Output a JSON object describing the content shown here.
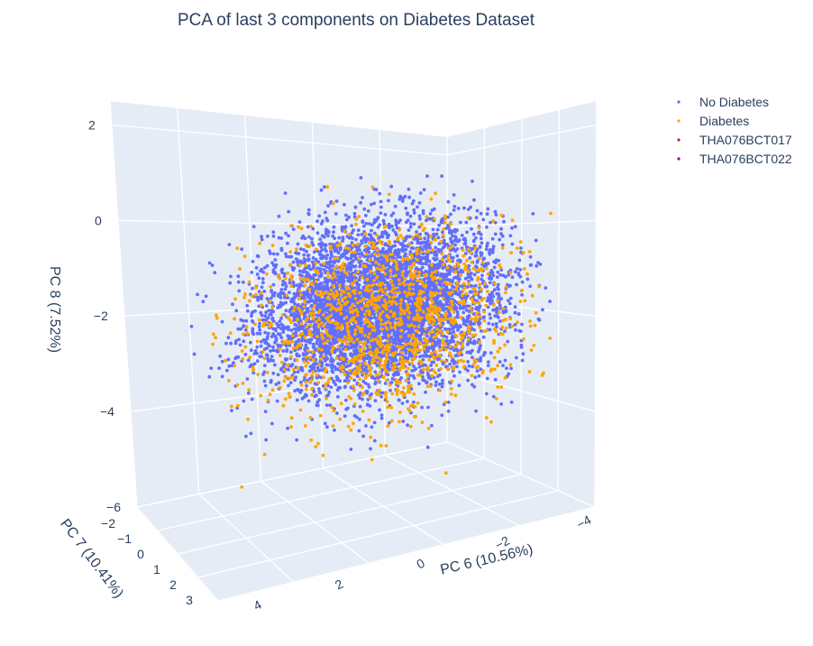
{
  "chart_data": {
    "type": "scatter",
    "dimension": "3d",
    "title": "PCA of last 3 components on Diabetes Dataset",
    "axes": {
      "x": {
        "label": "PC 6 (10.56%)",
        "range": [
          -4,
          4
        ],
        "ticks": [
          "−4",
          "−2",
          "0",
          "2",
          "4"
        ]
      },
      "y": {
        "label": "PC 7 (10.41%)",
        "range": [
          -2,
          3
        ],
        "ticks": [
          "−2",
          "−1",
          "0",
          "1",
          "2",
          "3"
        ]
      },
      "z": {
        "label": "PC 8 (7.52%)",
        "range": [
          -6,
          2.5
        ],
        "ticks": [
          "−6",
          "−4",
          "−2",
          "0",
          "2"
        ]
      }
    },
    "grid": true,
    "legend_position": "top-right",
    "series": [
      {
        "name": "No Diabetes",
        "color": "#636efa",
        "marker": "circle",
        "distribution": {
          "center": [
            0.3,
            0.2,
            -0.6
          ],
          "spread": [
            1.2,
            0.9,
            1.1
          ]
        }
      },
      {
        "name": "Diabetes",
        "color": "#ffa500",
        "marker": "circle",
        "distribution": {
          "center": [
            -0.3,
            0.2,
            -0.8
          ],
          "spread": [
            1.4,
            1.0,
            1.2
          ]
        }
      },
      {
        "name": "THA076BCT017",
        "color": "#dc143c",
        "marker": "circle"
      },
      {
        "name": "THA076BCT022",
        "color": "#8b008b",
        "marker": "circle"
      }
    ]
  }
}
